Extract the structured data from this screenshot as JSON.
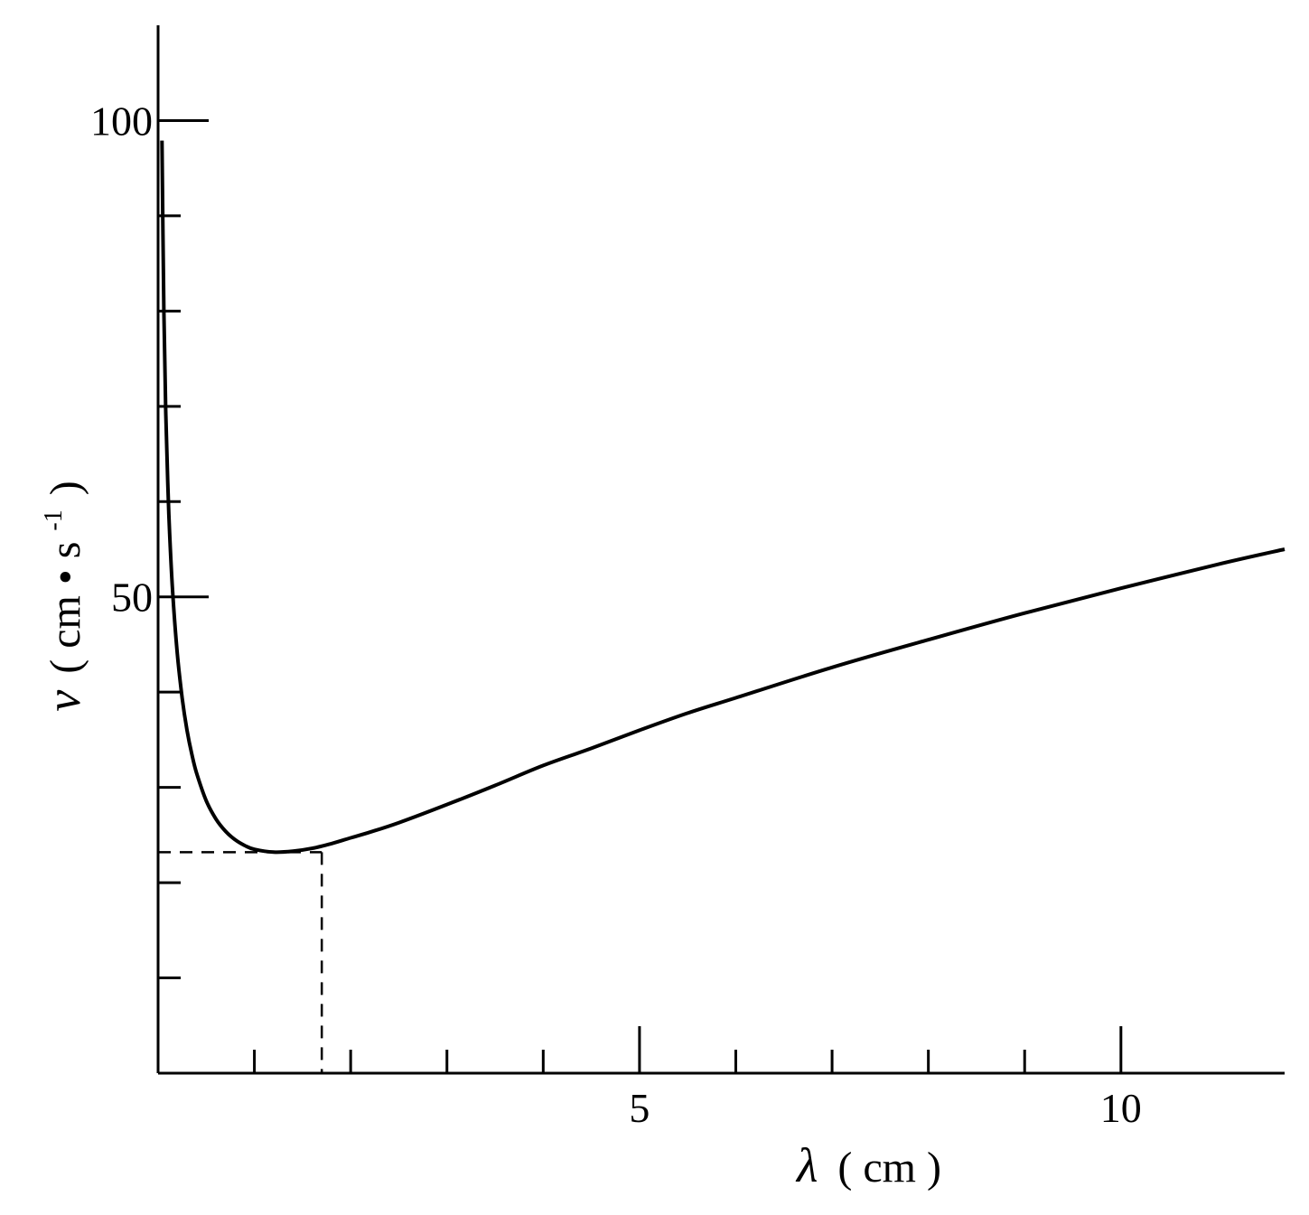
{
  "chart_data": {
    "type": "line",
    "title": "",
    "xlabel_symbol": "λ",
    "xlabel_unit": "( cm )",
    "ylabel_symbol": "v",
    "ylabel_unit_open": "( cm",
    "ylabel_unit_dot": "•",
    "ylabel_unit_s": "s",
    "ylabel_unit_exp": "-1",
    "ylabel_unit_close": ")",
    "xlim": [
      0,
      11.7
    ],
    "ylim": [
      0,
      110
    ],
    "x_major_ticks": [
      {
        "value": 5,
        "label": "5"
      },
      {
        "value": 10,
        "label": "10"
      }
    ],
    "x_minor_ticks": [
      1,
      2,
      3,
      4,
      6,
      7,
      8,
      9
    ],
    "y_major_ticks": [
      {
        "value": 50,
        "label": "50"
      },
      {
        "value": 100,
        "label": "100"
      }
    ],
    "y_minor_ticks": [
      10,
      20,
      30,
      40,
      60,
      70,
      80,
      90
    ],
    "grid": false,
    "legend": "none",
    "series": [
      {
        "x": [
          0.04,
          0.06,
          0.08,
          0.1,
          0.12,
          0.15,
          0.2,
          0.25,
          0.3,
          0.35,
          0.4,
          0.5,
          0.6,
          0.7,
          0.8,
          0.9,
          1.0,
          1.2,
          1.4,
          1.6,
          1.8,
          2.0,
          2.2,
          2.5,
          3.0,
          3.5,
          4.0,
          4.5,
          5.0,
          5.5,
          6.0,
          7.0,
          8.0,
          9.0,
          10.0,
          11.0,
          11.7
        ],
        "y": [
          97.9,
          80.0,
          69.3,
          62.0,
          56.6,
          50.7,
          44.0,
          39.4,
          36.0,
          33.5,
          31.5,
          28.6,
          26.7,
          25.4,
          24.5,
          23.9,
          23.5,
          23.2,
          23.3,
          23.6,
          24.1,
          24.7,
          25.3,
          26.3,
          28.2,
          30.2,
          32.3,
          34.1,
          36.0,
          37.8,
          39.4,
          42.6,
          45.5,
          48.3,
          50.9,
          53.4,
          55.0
        ]
      }
    ],
    "reference_point": {
      "x": 1.7,
      "y": 23.2,
      "style": "dashed"
    }
  }
}
